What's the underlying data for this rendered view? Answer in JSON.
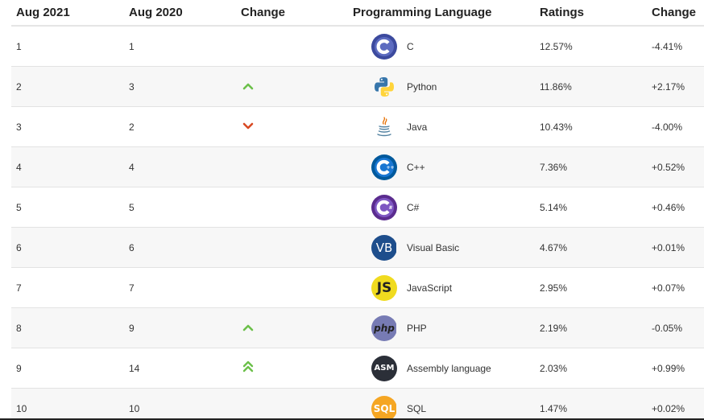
{
  "headers": {
    "aug2021": "Aug 2021",
    "aug2020": "Aug 2020",
    "change": "Change",
    "language": "Programming Language",
    "ratings": "Ratings",
    "change2": "Change"
  },
  "colors": {
    "up_arrow": "#6cc04a",
    "down_arrow": "#d84a24"
  },
  "rows": [
    {
      "aug2021": "1",
      "aug2020": "1",
      "trend": "none",
      "icon": "c-logo-icon",
      "language": "C",
      "rating": "12.57%",
      "change": "-4.41%"
    },
    {
      "aug2021": "2",
      "aug2020": "3",
      "trend": "up",
      "icon": "python-logo-icon",
      "language": "Python",
      "rating": "11.86%",
      "change": "+2.17%"
    },
    {
      "aug2021": "3",
      "aug2020": "2",
      "trend": "down",
      "icon": "java-logo-icon",
      "language": "Java",
      "rating": "10.43%",
      "change": "-4.00%"
    },
    {
      "aug2021": "4",
      "aug2020": "4",
      "trend": "none",
      "icon": "cpp-logo-icon",
      "language": "C++",
      "rating": "7.36%",
      "change": "+0.52%"
    },
    {
      "aug2021": "5",
      "aug2020": "5",
      "trend": "none",
      "icon": "csharp-logo-icon",
      "language": "C#",
      "rating": "5.14%",
      "change": "+0.46%"
    },
    {
      "aug2021": "6",
      "aug2020": "6",
      "trend": "none",
      "icon": "visual-basic-logo-icon",
      "logo_text": "VB",
      "language": "Visual Basic",
      "rating": "4.67%",
      "change": "+0.01%"
    },
    {
      "aug2021": "7",
      "aug2020": "7",
      "trend": "none",
      "icon": "javascript-logo-icon",
      "logo_text": "JS",
      "language": "JavaScript",
      "rating": "2.95%",
      "change": "+0.07%"
    },
    {
      "aug2021": "8",
      "aug2020": "9",
      "trend": "up",
      "icon": "php-logo-icon",
      "logo_text": "php",
      "language": "PHP",
      "rating": "2.19%",
      "change": "-0.05%"
    },
    {
      "aug2021": "9",
      "aug2020": "14",
      "trend": "double-up",
      "icon": "assembly-logo-icon",
      "logo_text": "ASM",
      "language": "Assembly language",
      "rating": "2.03%",
      "change": "+0.99%"
    },
    {
      "aug2021": "10",
      "aug2020": "10",
      "trend": "none",
      "icon": "sql-logo-icon",
      "logo_text": "SQL",
      "language": "SQL",
      "rating": "1.47%",
      "change": "+0.02%"
    }
  ]
}
